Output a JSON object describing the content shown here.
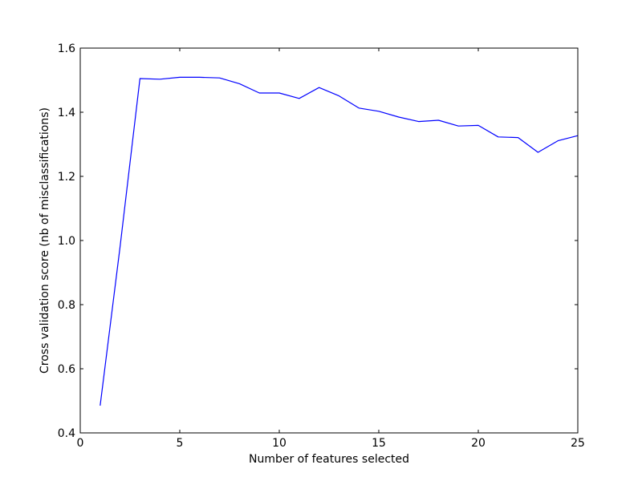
{
  "chart_data": {
    "type": "line",
    "title": "",
    "xlabel": "Number of features selected",
    "ylabel": "Cross validation score (nb of misclassifications)",
    "xlim": [
      0,
      25
    ],
    "ylim": [
      0.4,
      1.6
    ],
    "xticks": [
      0,
      5,
      10,
      15,
      20,
      25
    ],
    "xtick_labels": [
      "0",
      "5",
      "10",
      "15",
      "20",
      "25"
    ],
    "yticks": [
      0.4,
      0.6,
      0.8,
      1.0,
      1.2,
      1.4,
      1.6
    ],
    "ytick_labels": [
      "0.4",
      "0.6",
      "0.8",
      "1.0",
      "1.2",
      "1.4",
      "1.6"
    ],
    "grid": false,
    "legend": "none",
    "series": [
      {
        "color": "#0000ff",
        "x": [
          1,
          2,
          3,
          4,
          5,
          6,
          7,
          8,
          9,
          10,
          11,
          12,
          13,
          14,
          15,
          16,
          17,
          18,
          19,
          20,
          21,
          22,
          23,
          24,
          25
        ],
        "y": [
          0.485,
          0.98,
          1.505,
          1.503,
          1.509,
          1.509,
          1.507,
          1.489,
          1.46,
          1.46,
          1.443,
          1.477,
          1.451,
          1.413,
          1.403,
          1.385,
          1.371,
          1.375,
          1.357,
          1.359,
          1.323,
          1.321,
          1.275,
          1.311,
          1.327
        ]
      }
    ]
  }
}
